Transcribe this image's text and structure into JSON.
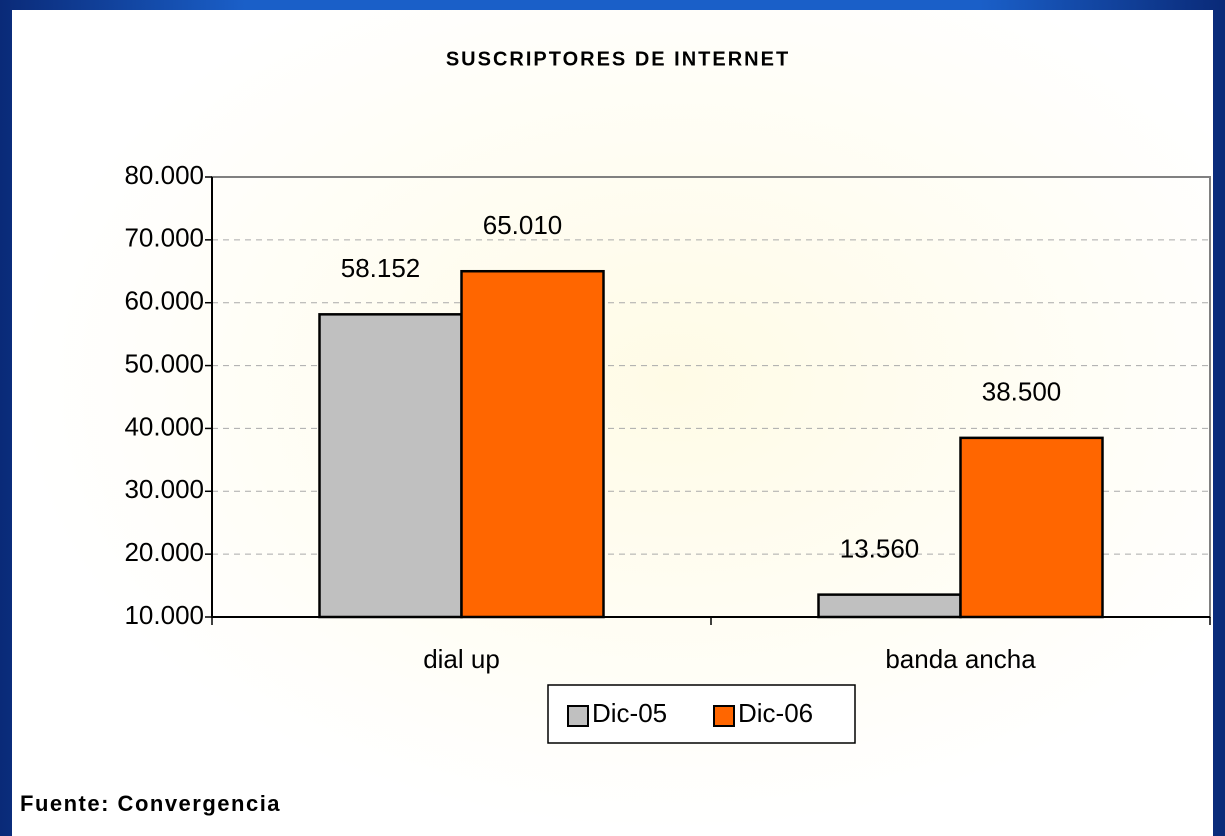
{
  "chart_data": {
    "type": "bar",
    "title": "SUSCRIPTORES DE INTERNET",
    "categories": [
      "dial up",
      "banda ancha"
    ],
    "series": [
      {
        "name": "Dic-05",
        "color": "#c0c0c0",
        "values": [
          58152,
          13560
        ],
        "value_labels": [
          "58.152",
          "13.560"
        ]
      },
      {
        "name": "Dic-06",
        "color": "#ff6600",
        "values": [
          65010,
          38500
        ],
        "value_labels": [
          "65.010",
          "38.500"
        ]
      }
    ],
    "ylim": [
      10000,
      80000
    ],
    "yticks": [
      {
        "value": 10000,
        "label": "10.000"
      },
      {
        "value": 20000,
        "label": "20.000"
      },
      {
        "value": 30000,
        "label": "30.000"
      },
      {
        "value": 40000,
        "label": "40.000"
      },
      {
        "value": 50000,
        "label": "50.000"
      },
      {
        "value": 60000,
        "label": "60.000"
      },
      {
        "value": 70000,
        "label": "70.000"
      },
      {
        "value": 80000,
        "label": "80.000"
      }
    ],
    "grid": true,
    "legend": "bottom",
    "source": "Fuente: Convergencia"
  }
}
